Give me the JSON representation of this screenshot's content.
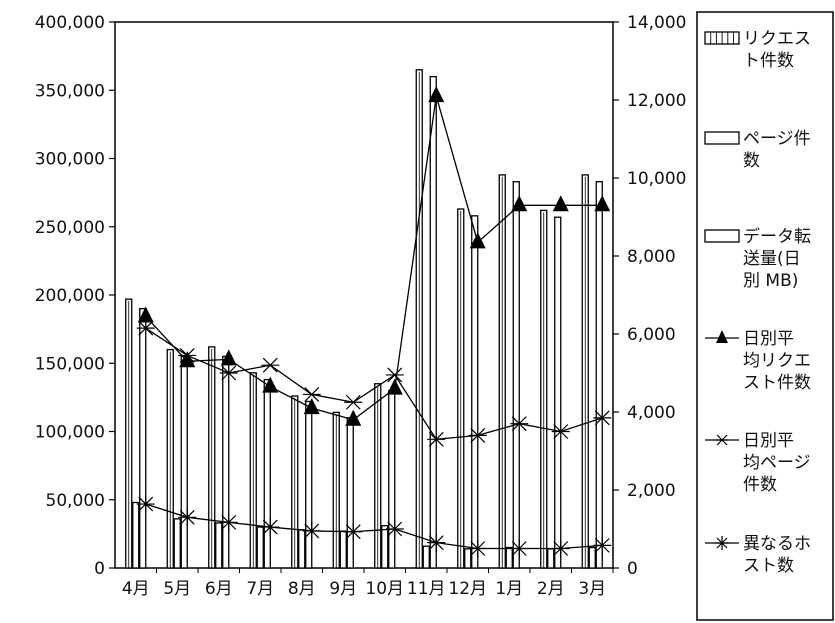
{
  "chart_data": {
    "type": "bar+line",
    "categories": [
      "4月",
      "5月",
      "6月",
      "7月",
      "8月",
      "9月",
      "10月",
      "11月",
      "12月",
      "1月",
      "2月",
      "3月"
    ],
    "left_axis": {
      "ylim": [
        0,
        400000
      ],
      "ticks": [
        "0",
        "50,000",
        "100,000",
        "150,000",
        "200,000",
        "250,000",
        "300,000",
        "350,000",
        "400,000"
      ]
    },
    "right_axis": {
      "ylim": [
        0,
        14000
      ],
      "ticks": [
        "0",
        "2,000",
        "4,000",
        "6,000",
        "8,000",
        "10,000",
        "12,000",
        "14,000"
      ]
    },
    "series": [
      {
        "name": "リクエスト件数",
        "kind": "bar",
        "axis": "left",
        "values": [
          197000,
          160000,
          162000,
          143000,
          126000,
          114000,
          135000,
          365000,
          263000,
          288000,
          262000,
          288000
        ]
      },
      {
        "name": "ページ件数",
        "kind": "bar",
        "axis": "left",
        "values": [
          48000,
          36000,
          33000,
          30000,
          28000,
          27000,
          31000,
          16000,
          14000,
          15000,
          14000,
          15000
        ]
      },
      {
        "name": "データ転送量(日別 MB)",
        "kind": "bar",
        "axis": "left",
        "values": [
          190000,
          155000,
          155000,
          138000,
          122000,
          110000,
          130000,
          360000,
          258000,
          283000,
          257000,
          283000
        ]
      },
      {
        "name": "日別平均リクエスト件数",
        "kind": "line",
        "axis": "right",
        "marker": "triangle",
        "values": [
          6450,
          5300,
          5350,
          4650,
          4100,
          3800,
          4600,
          12100,
          8350,
          9300,
          9300,
          9300
        ]
      },
      {
        "name": "日別平均ページ件数",
        "kind": "line",
        "axis": "right",
        "marker": "asterisk",
        "values": [
          6150,
          5450,
          5000,
          5200,
          4450,
          4250,
          4950,
          3300,
          3400,
          3700,
          3500,
          3850
        ]
      },
      {
        "name": "異なるホスト数",
        "kind": "line",
        "axis": "right",
        "marker": "star",
        "values": [
          1640,
          1300,
          1170,
          1050,
          950,
          930,
          1000,
          650,
          500,
          500,
          500,
          580
        ]
      }
    ],
    "legend": [
      {
        "lines": [
          "リクエス",
          "ト件数"
        ]
      },
      {
        "lines": [
          "ページ件",
          "数"
        ]
      },
      {
        "lines": [
          "データ転",
          "送量(日",
          "別 MB)"
        ]
      },
      {
        "lines": [
          "日別平",
          "均リクエ",
          "スト件数"
        ]
      },
      {
        "lines": [
          "日別平",
          "均ページ",
          "件数"
        ]
      },
      {
        "lines": [
          "異なるホ",
          "スト数"
        ]
      }
    ],
    "legend_position": "right",
    "grid": false
  }
}
